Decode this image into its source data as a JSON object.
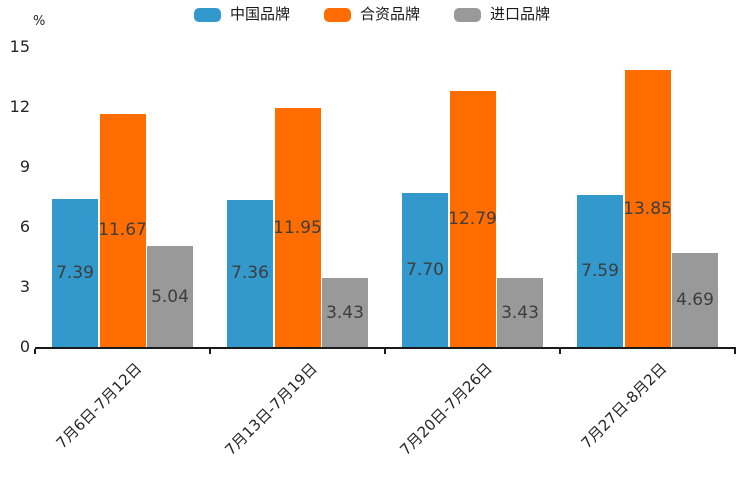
{
  "chart_data": {
    "type": "bar",
    "title": "",
    "unit_label": "%",
    "categories": [
      "7月6日-7月12日",
      "7月13日-7月19日",
      "7月20日-7月26日",
      "7月27日-8月2日"
    ],
    "series": [
      {
        "name": "中国品牌",
        "color": "#3399cc",
        "values": [
          7.39,
          7.36,
          7.7,
          7.59
        ]
      },
      {
        "name": "合资品牌",
        "color": "#ff6d00",
        "values": [
          11.67,
          11.95,
          12.79,
          13.85
        ]
      },
      {
        "name": "进口品牌",
        "color": "#999999",
        "values": [
          5.04,
          3.43,
          3.43,
          4.69
        ]
      }
    ],
    "value_label_decimals": 2,
    "yticks": [
      0,
      3,
      6,
      9,
      12,
      15
    ],
    "ylim": [
      0,
      15
    ],
    "legend_position": "top-center",
    "grid": false,
    "x_label_rotation_deg": 45
  }
}
